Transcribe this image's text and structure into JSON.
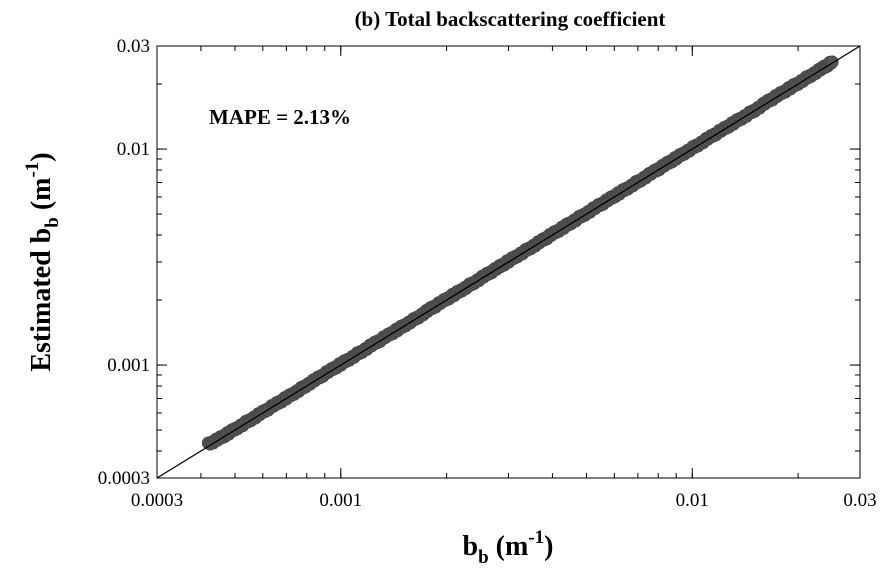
{
  "chart_data": {
    "type": "scatter",
    "title": "(b) Total backscattering coefficient",
    "xlabel": {
      "base": "b",
      "sub": "b",
      "unit_open": " (m",
      "sup": "-1",
      "unit_close": ")"
    },
    "ylabel": {
      "base": "Estimated b",
      "sub": "b",
      "unit_open": " (m",
      "sup": "-1",
      "unit_close": ")"
    },
    "x_scale": "log",
    "y_scale": "log",
    "xlim": [
      0.0003,
      0.03
    ],
    "ylim": [
      0.0003,
      0.03
    ],
    "xticks": [
      {
        "value": 0.0003,
        "label": "0.0003"
      },
      {
        "value": 0.001,
        "label": "0.001"
      },
      {
        "value": 0.01,
        "label": "0.01"
      },
      {
        "value": 0.03,
        "label": "0.03"
      }
    ],
    "yticks": [
      {
        "value": 0.0003,
        "label": "0.0003"
      },
      {
        "value": 0.001,
        "label": "0.001"
      },
      {
        "value": 0.01,
        "label": "0.01"
      },
      {
        "value": 0.03,
        "label": "0.03"
      }
    ],
    "annotation": "MAPE = 2.13%",
    "grid": false,
    "series": [
      {
        "type": "scatter",
        "color": "#555555",
        "x": [
          0.00042,
          0.00045,
          0.00048,
          0.00052,
          0.00056,
          0.0006,
          0.00065,
          0.0007,
          0.00075,
          0.0008,
          0.00086,
          0.00093,
          0.001,
          0.00108,
          0.00116,
          0.00125,
          0.00135,
          0.00145,
          0.00156,
          0.00168,
          0.0018,
          0.00194,
          0.0021,
          0.00225,
          0.00242,
          0.0026,
          0.0028,
          0.003,
          0.00325,
          0.0035,
          0.00375,
          0.004,
          0.0043,
          0.0046,
          0.005,
          0.0054,
          0.0058,
          0.0062,
          0.0067,
          0.0072,
          0.0078,
          0.0084,
          0.009,
          0.0097,
          0.0105,
          0.0113,
          0.0122,
          0.0131,
          0.0141,
          0.0152,
          0.0164,
          0.0176,
          0.019,
          0.0204,
          0.022,
          0.0236,
          0.025
        ],
        "y": [
          0.00043,
          0.000455,
          0.000485,
          0.000525,
          0.000565,
          0.000605,
          0.000655,
          0.000705,
          0.000755,
          0.000808,
          0.000868,
          0.00094,
          0.00101,
          0.00109,
          0.00117,
          0.00126,
          0.00136,
          0.00146,
          0.00157,
          0.00169,
          0.00182,
          0.00196,
          0.00212,
          0.00227,
          0.00244,
          0.00262,
          0.00282,
          0.00303,
          0.00328,
          0.00353,
          0.00378,
          0.00404,
          0.00434,
          0.00465,
          0.00505,
          0.00545,
          0.00585,
          0.00626,
          0.00676,
          0.00727,
          0.00787,
          0.00848,
          0.00909,
          0.0098,
          0.0106,
          0.0114,
          0.0123,
          0.0132,
          0.0142,
          0.0153,
          0.0166,
          0.0178,
          0.0192,
          0.0206,
          0.0222,
          0.0238,
          0.0253
        ]
      },
      {
        "type": "line",
        "color": "#000000",
        "x": [
          0.0003,
          0.03
        ],
        "y": [
          0.0003,
          0.03
        ]
      }
    ]
  }
}
